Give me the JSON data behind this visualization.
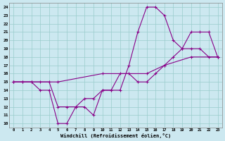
{
  "xlabel": "Windchill (Refroidissement éolien,°C)",
  "bg_color": "#cce8f0",
  "line_color": "#880088",
  "grid_color": "#99cccc",
  "xlim": [
    -0.5,
    23.5
  ],
  "ylim": [
    9.5,
    24.5
  ],
  "xticks": [
    0,
    1,
    2,
    3,
    4,
    5,
    6,
    7,
    8,
    9,
    10,
    11,
    12,
    13,
    14,
    15,
    16,
    17,
    18,
    19,
    20,
    21,
    22,
    23
  ],
  "yticks": [
    10,
    11,
    12,
    13,
    14,
    15,
    16,
    17,
    18,
    19,
    20,
    21,
    22,
    23,
    24
  ],
  "line1_x": [
    0,
    1,
    2,
    3,
    4,
    5,
    6,
    7,
    8,
    9,
    10,
    11,
    12,
    13,
    14,
    15,
    16,
    17,
    18,
    19,
    20,
    21,
    22,
    23
  ],
  "line1_y": [
    15,
    15,
    15,
    14,
    14,
    10,
    10,
    12,
    12,
    11,
    14,
    14,
    14,
    17,
    21,
    24,
    24,
    23,
    20,
    19,
    19,
    19,
    18,
    18
  ],
  "line2_x": [
    0,
    1,
    2,
    3,
    4,
    5,
    6,
    7,
    8,
    9,
    10,
    11,
    12,
    13,
    14,
    15,
    16,
    17,
    18,
    19,
    20,
    21,
    22,
    23
  ],
  "line2_y": [
    15,
    15,
    15,
    15,
    15,
    12,
    12,
    12,
    13,
    13,
    14,
    14,
    16,
    16,
    15,
    15,
    16,
    17,
    18,
    19,
    21,
    21,
    21,
    18
  ],
  "line3_x": [
    0,
    5,
    10,
    15,
    17,
    20,
    23
  ],
  "line3_y": [
    15,
    15,
    16,
    16,
    17,
    18,
    18
  ]
}
